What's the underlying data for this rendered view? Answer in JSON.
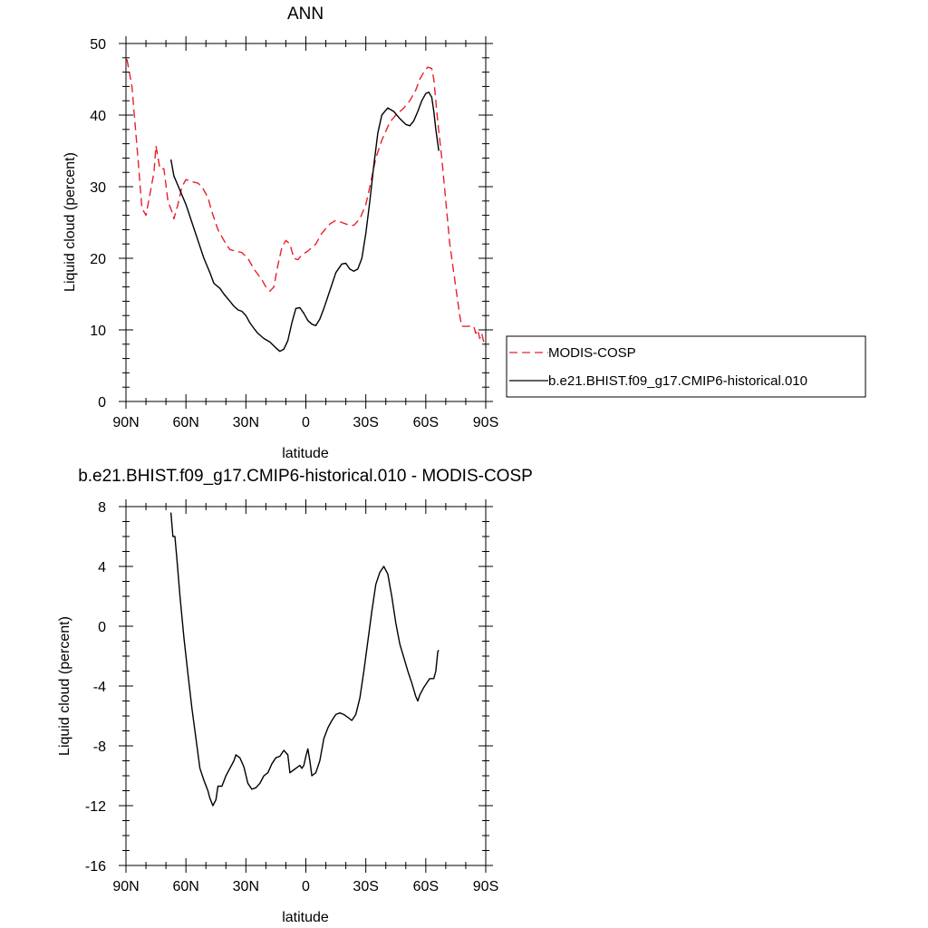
{
  "chart_data": [
    {
      "type": "line",
      "title": "ANN",
      "xlabel": "latitude",
      "ylabel": "Liquid cloud (percent)",
      "xlim": [
        90,
        -90
      ],
      "ylim": [
        0,
        50
      ],
      "xticks": [
        90,
        60,
        30,
        0,
        -30,
        -60,
        -90
      ],
      "xticklabels": [
        "90N",
        "60N",
        "30N",
        "0",
        "30S",
        "60S",
        "90S"
      ],
      "yticks": [
        0,
        10,
        20,
        30,
        40,
        50
      ],
      "yticklabels": [
        "0",
        "10",
        "20",
        "30",
        "40",
        "50"
      ],
      "grid": false,
      "legend_position": "right",
      "series": [
        {
          "name": "MODIS-COSP",
          "color": "#e8202a",
          "style": "dashed",
          "points": [
            [
              89.5,
              47.8
            ],
            [
              87,
              44
            ],
            [
              84,
              34
            ],
            [
              82,
              27
            ],
            [
              80,
              26
            ],
            [
              78,
              29
            ],
            [
              76,
              32
            ],
            [
              75,
              35.7
            ],
            [
              73,
              32.5
            ],
            [
              71,
              32.5
            ],
            [
              69,
              28
            ],
            [
              67,
              26.5
            ],
            [
              66,
              25.5
            ],
            [
              64,
              27.5
            ],
            [
              62,
              30
            ],
            [
              60,
              31
            ],
            [
              57,
              30.7
            ],
            [
              54,
              30.5
            ],
            [
              52,
              30
            ],
            [
              49,
              28.5
            ],
            [
              47,
              26.5
            ],
            [
              44,
              24
            ],
            [
              41,
              22.5
            ],
            [
              38,
              21.2
            ],
            [
              35,
              21
            ],
            [
              32,
              20.8
            ],
            [
              29,
              20
            ],
            [
              26,
              18.5
            ],
            [
              22,
              17
            ],
            [
              20,
              16
            ],
            [
              18,
              15.4
            ],
            [
              16,
              16
            ],
            [
              14,
              19
            ],
            [
              12,
              21.5
            ],
            [
              10,
              22.5
            ],
            [
              8,
              22
            ],
            [
              6,
              20
            ],
            [
              4,
              19.8
            ],
            [
              2,
              20.5
            ],
            [
              -1,
              21
            ],
            [
              -5,
              22
            ],
            [
              -8,
              23.5
            ],
            [
              -12,
              24.8
            ],
            [
              -15,
              25.3
            ],
            [
              -18,
              25
            ],
            [
              -21,
              24.7
            ],
            [
              -24,
              24.6
            ],
            [
              -27,
              25.5
            ],
            [
              -30,
              27.5
            ],
            [
              -32,
              30
            ],
            [
              -35,
              34
            ],
            [
              -38,
              36.5
            ],
            [
              -42,
              39
            ],
            [
              -45,
              40
            ],
            [
              -49,
              41
            ],
            [
              -52,
              42
            ],
            [
              -55,
              43.5
            ],
            [
              -57,
              45
            ],
            [
              -59,
              46
            ],
            [
              -61,
              46.7
            ],
            [
              -63,
              46.5
            ],
            [
              -64,
              45
            ],
            [
              -66,
              39
            ],
            [
              -68,
              34
            ],
            [
              -70,
              28
            ],
            [
              -72,
              22
            ],
            [
              -74,
              18
            ],
            [
              -76,
              14
            ],
            [
              -77,
              12
            ],
            [
              -78,
              10.5
            ],
            [
              -80,
              10.5
            ],
            [
              -82,
              10.5
            ],
            [
              -84,
              10.5
            ],
            [
              -85,
              9.5
            ],
            [
              -86,
              10
            ],
            [
              -87,
              8.8
            ],
            [
              -88,
              9.5
            ],
            [
              -89,
              8.3
            ],
            [
              -89.5,
              8.5
            ]
          ]
        },
        {
          "name": "b.e21.BHIST.f09_g17.CMIP6-historical.010",
          "color": "#000000",
          "style": "solid",
          "points": [
            [
              67.5,
              33.8
            ],
            [
              66,
              31.5
            ],
            [
              63,
              29.5
            ],
            [
              60,
              27.5
            ],
            [
              57,
              25
            ],
            [
              54,
              22.5
            ],
            [
              51,
              20
            ],
            [
              48,
              18
            ],
            [
              46,
              16.5
            ],
            [
              43,
              15.8
            ],
            [
              41,
              15
            ],
            [
              38,
              14
            ],
            [
              36,
              13.3
            ],
            [
              34,
              12.8
            ],
            [
              32,
              12.6
            ],
            [
              30,
              12
            ],
            [
              28,
              11
            ],
            [
              26,
              10.2
            ],
            [
              24,
              9.5
            ],
            [
              21,
              8.8
            ],
            [
              18,
              8.3
            ],
            [
              15,
              7.5
            ],
            [
              13,
              7
            ],
            [
              11,
              7.3
            ],
            [
              9,
              8.5
            ],
            [
              7,
              11
            ],
            [
              5,
              13
            ],
            [
              3,
              13.1
            ],
            [
              1,
              12.3
            ],
            [
              -1,
              11.3
            ],
            [
              -3,
              10.8
            ],
            [
              -5,
              10.6
            ],
            [
              -7,
              11.5
            ],
            [
              -9,
              13
            ],
            [
              -12,
              15.5
            ],
            [
              -15,
              18
            ],
            [
              -18,
              19.2
            ],
            [
              -20,
              19.3
            ],
            [
              -22,
              18.5
            ],
            [
              -24,
              18.2
            ],
            [
              -26,
              18.5
            ],
            [
              -28,
              20
            ],
            [
              -30,
              23.5
            ],
            [
              -32,
              28
            ],
            [
              -34,
              33
            ],
            [
              -36,
              37.5
            ],
            [
              -38,
              40
            ],
            [
              -41,
              41
            ],
            [
              -44,
              40.5
            ],
            [
              -47,
              39.5
            ],
            [
              -50,
              38.7
            ],
            [
              -52,
              38.5
            ],
            [
              -54,
              39.2
            ],
            [
              -56,
              40.5
            ],
            [
              -58,
              42
            ],
            [
              -60,
              43
            ],
            [
              -61.5,
              43.2
            ],
            [
              -63,
              42.5
            ],
            [
              -64,
              40.5
            ],
            [
              -65,
              38
            ],
            [
              -66,
              36
            ],
            [
              -66.5,
              35
            ]
          ]
        }
      ]
    },
    {
      "type": "line",
      "title": "b.e21.BHIST.f09_g17.CMIP6-historical.010 - MODIS-COSP",
      "xlabel": "latitude",
      "ylabel": "Liquid cloud (percent)",
      "xlim": [
        90,
        -90
      ],
      "ylim": [
        -16,
        8
      ],
      "xticks": [
        90,
        60,
        30,
        0,
        -30,
        -60,
        -90
      ],
      "xticklabels": [
        "90N",
        "60N",
        "30N",
        "0",
        "30S",
        "60S",
        "90S"
      ],
      "yticks": [
        -16,
        -12,
        -8,
        -4,
        0,
        4,
        8
      ],
      "yticklabels": [
        "-16",
        "-12",
        "-8",
        "-4",
        "0",
        "4",
        "8"
      ],
      "grid": false,
      "series": [
        {
          "color": "#000000",
          "style": "solid",
          "points": [
            [
              67.5,
              7.6
            ],
            [
              66.5,
              6.0
            ],
            [
              65.5,
              6.0
            ],
            [
              64.5,
              4.5
            ],
            [
              63,
              2
            ],
            [
              61,
              -0.8
            ],
            [
              59,
              -3.2
            ],
            [
              57,
              -5.5
            ],
            [
              55,
              -7.5
            ],
            [
              53,
              -9.5
            ],
            [
              51,
              -10.3
            ],
            [
              49,
              -11.0
            ],
            [
              48,
              -11.5
            ],
            [
              46.5,
              -12.0
            ],
            [
              45,
              -11.6
            ],
            [
              44,
              -10.7
            ],
            [
              42,
              -10.7
            ],
            [
              40,
              -10.0
            ],
            [
              38,
              -9.5
            ],
            [
              36,
              -9.0
            ],
            [
              35,
              -8.6
            ],
            [
              33,
              -8.8
            ],
            [
              31,
              -9.4
            ],
            [
              29,
              -10.5
            ],
            [
              27,
              -10.9
            ],
            [
              25,
              -10.8
            ],
            [
              23,
              -10.5
            ],
            [
              21,
              -10.0
            ],
            [
              19,
              -9.8
            ],
            [
              17,
              -9.2
            ],
            [
              15,
              -8.8
            ],
            [
              13,
              -8.7
            ],
            [
              11,
              -8.3
            ],
            [
              9,
              -8.6
            ],
            [
              8,
              -9.8
            ],
            [
              7,
              -9.7
            ],
            [
              5,
              -9.5
            ],
            [
              3,
              -9.3
            ],
            [
              2,
              -9.5
            ],
            [
              1,
              -9.3
            ],
            [
              0,
              -8.7
            ],
            [
              -1,
              -8.2
            ],
            [
              -2,
              -9.0
            ],
            [
              -3,
              -10.0
            ],
            [
              -5,
              -9.8
            ],
            [
              -7,
              -9.0
            ],
            [
              -9,
              -7.5
            ],
            [
              -11,
              -6.8
            ],
            [
              -13,
              -6.3
            ],
            [
              -15,
              -5.9
            ],
            [
              -17,
              -5.8
            ],
            [
              -19,
              -5.9
            ],
            [
              -21,
              -6.1
            ],
            [
              -23,
              -6.3
            ],
            [
              -25,
              -5.9
            ],
            [
              -27,
              -4.8
            ],
            [
              -29,
              -3.0
            ],
            [
              -31,
              -1.0
            ],
            [
              -33,
              1.0
            ],
            [
              -35,
              2.8
            ],
            [
              -37,
              3.6
            ],
            [
              -39,
              4.0
            ],
            [
              -41,
              3.5
            ],
            [
              -43,
              2.0
            ],
            [
              -45,
              0.2
            ],
            [
              -47,
              -1.2
            ],
            [
              -49,
              -2.1
            ],
            [
              -51,
              -3.0
            ],
            [
              -53,
              -3.8
            ],
            [
              -55,
              -4.7
            ],
            [
              -56,
              -5.0
            ],
            [
              -57,
              -4.6
            ],
            [
              -59,
              -4.1
            ],
            [
              -61,
              -3.7
            ],
            [
              -62,
              -3.5
            ],
            [
              -64,
              -3.5
            ],
            [
              -65,
              -3.0
            ],
            [
              -66,
              -1.7
            ],
            [
              -66.5,
              -1.6
            ]
          ]
        }
      ]
    }
  ]
}
